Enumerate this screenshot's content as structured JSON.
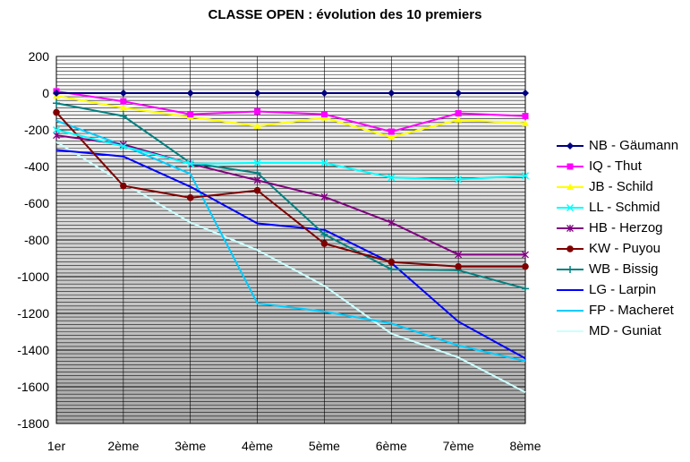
{
  "chart_data": {
    "type": "line",
    "title": "CLASSE OPEN : évolution des 10 premiers",
    "xlabel": "",
    "ylabel": "",
    "categories": [
      "1er",
      "2ème",
      "3ème",
      "4ème",
      "5ème",
      "6ème",
      "7ème",
      "8ème"
    ],
    "ylim": [
      -1800,
      200
    ],
    "yticks": [
      200,
      0,
      -200,
      -400,
      -600,
      -800,
      -1000,
      -1200,
      -1400,
      -1600,
      -1800
    ],
    "grid": true,
    "legend_position": "right",
    "series": [
      {
        "name": "NB - Gäumann",
        "color": "#000080",
        "marker": "diamond",
        "values": [
          0,
          0,
          0,
          0,
          0,
          0,
          0,
          0
        ]
      },
      {
        "name": "IQ - Thut",
        "color": "#FF00FF",
        "marker": "square",
        "values": [
          10,
          -45,
          -115,
          -100,
          -115,
          -210,
          -110,
          -125
        ]
      },
      {
        "name": "JB - Schild",
        "color": "#FFFF00",
        "marker": "triangle",
        "values": [
          -15,
          -80,
          -130,
          -180,
          -135,
          -240,
          -145,
          -165
        ]
      },
      {
        "name": "LL - Schmid",
        "color": "#00FFFF",
        "marker": "x",
        "values": [
          -200,
          -290,
          -385,
          -380,
          -380,
          -460,
          -470,
          -450
        ]
      },
      {
        "name": "HB - Herzog",
        "color": "#800080",
        "marker": "star",
        "values": [
          -230,
          -280,
          -385,
          -475,
          -565,
          -705,
          -880,
          -880
        ]
      },
      {
        "name": "KW - Puyou",
        "color": "#800000",
        "marker": "circle",
        "values": [
          -105,
          -505,
          -570,
          -530,
          -820,
          -920,
          -945,
          -945
        ]
      },
      {
        "name": "WB - Bissig",
        "color": "#008080",
        "marker": "plus",
        "values": [
          -55,
          -125,
          -380,
          -435,
          -770,
          -960,
          -965,
          -1065
        ]
      },
      {
        "name": "LG - Larpin",
        "color": "#0000FF",
        "marker": "none",
        "values": [
          -310,
          -345,
          -510,
          -710,
          -745,
          -925,
          -1245,
          -1445
        ]
      },
      {
        "name": "FP - Macheret",
        "color": "#00CCFF",
        "marker": "none",
        "values": [
          -150,
          -285,
          -440,
          -1145,
          -1190,
          -1255,
          -1375,
          -1460
        ]
      },
      {
        "name": "MD - Guniat",
        "color": "#CCFFFF",
        "marker": "none",
        "values": [
          -265,
          -490,
          -705,
          -855,
          -1050,
          -1310,
          -1440,
          -1630
        ]
      }
    ]
  }
}
